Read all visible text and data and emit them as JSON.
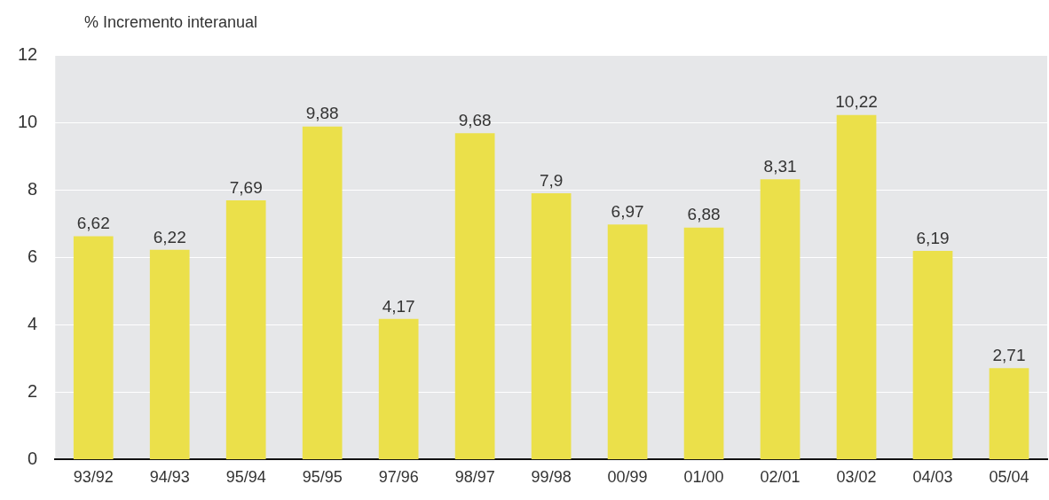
{
  "chart_data": {
    "type": "bar",
    "ylabel": "% Incremento interanual",
    "categories": [
      "93/92",
      "94/93",
      "95/94",
      "95/95",
      "97/96",
      "98/97",
      "99/98",
      "00/99",
      "01/00",
      "02/01",
      "03/02",
      "04/03",
      "05/04"
    ],
    "values": [
      6.62,
      6.22,
      7.69,
      9.88,
      4.17,
      9.68,
      7.9,
      6.97,
      6.88,
      8.31,
      10.22,
      6.19,
      2.71
    ],
    "value_labels": [
      "6,62",
      "6,22",
      "7,69",
      "9,88",
      "4,17",
      "9,68",
      "7,9",
      "6,97",
      "6,88",
      "8,31",
      "10,22",
      "6,19",
      "2,71"
    ],
    "color": "#ebe04a",
    "ylim": [
      0,
      12
    ],
    "yticks": [
      0,
      2,
      4,
      6,
      8,
      10,
      12
    ],
    "grid": "y"
  }
}
